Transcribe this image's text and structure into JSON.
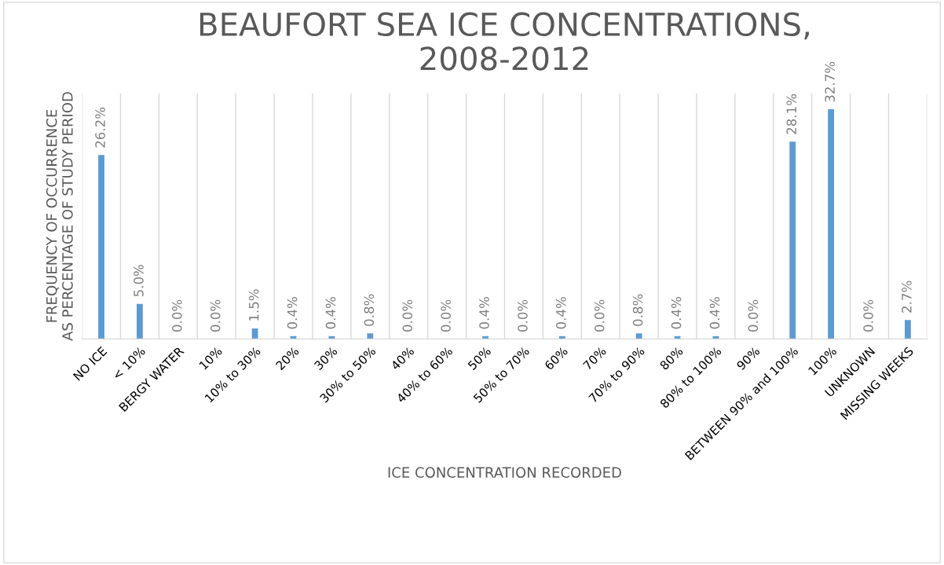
{
  "chart_data": {
    "type": "bar",
    "title": "BEAUFORT SEA ICE CONCENTRATIONS,\n2008-2012",
    "xlabel": "ICE CONCENTRATION RECORDED",
    "ylabel": "FREQUENCY OF OCCURRENCE\nAS PERCENTAGE OF STUDY PERIOD",
    "categories": [
      "NO ICE",
      "< 10%",
      "BERGY WATER",
      "10%",
      "10% to 30%",
      "20%",
      "30%",
      "30% to 50%",
      "40%",
      "40% to 60%",
      "50%",
      "50% to 70%",
      "60%",
      "70%",
      "70% to 90%",
      "80%",
      "80% to 100%",
      "90%",
      "BETWEEN 90% and 100%",
      "100%",
      "UNKNOWN",
      "MISSING WEEKS"
    ],
    "values": [
      26.2,
      5.0,
      0.0,
      0.0,
      1.5,
      0.4,
      0.4,
      0.8,
      0.0,
      0.0,
      0.4,
      0.0,
      0.4,
      0.0,
      0.8,
      0.4,
      0.4,
      0.0,
      28.1,
      32.7,
      0.0,
      2.7
    ],
    "value_labels": [
      "26.2%",
      "5.0%",
      "0.0%",
      "0.0%",
      "1.5%",
      "0.4%",
      "0.4%",
      "0.8%",
      "0.0%",
      "0.0%",
      "0.4%",
      "0.0%",
      "0.4%",
      "0.0%",
      "0.8%",
      "0.4%",
      "0.4%",
      "0.0%",
      "28.1%",
      "32.7%",
      "0.0%",
      "2.7%"
    ],
    "color": "#5b9bd5",
    "grid": "x",
    "legend": false
  }
}
